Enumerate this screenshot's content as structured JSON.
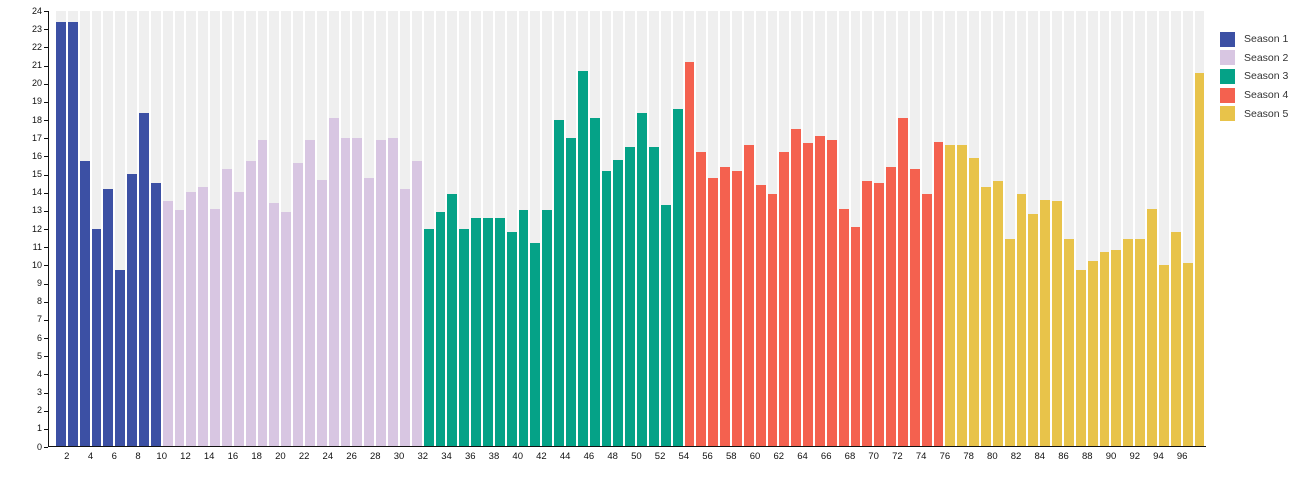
{
  "chart_data": {
    "type": "bar",
    "title": "",
    "xlabel": "",
    "ylabel": "",
    "x_unit": "episode number",
    "ylim": [
      0,
      24
    ],
    "y_ticks": [
      0,
      1,
      2,
      3,
      4,
      5,
      6,
      7,
      8,
      9,
      10,
      11,
      12,
      13,
      14,
      15,
      16,
      17,
      18,
      19,
      20,
      21,
      22,
      23,
      24
    ],
    "x_tick_labels": [
      2,
      4,
      6,
      8,
      10,
      12,
      14,
      16,
      18,
      20,
      22,
      24,
      26,
      28,
      30,
      32,
      34,
      36,
      38,
      40,
      42,
      44,
      46,
      48,
      50,
      52,
      54,
      56,
      58,
      60,
      62,
      64,
      66,
      68,
      70,
      72,
      74,
      76,
      78,
      80,
      82,
      84,
      86,
      88,
      90,
      92,
      94,
      96
    ],
    "total_bars": 97,
    "grid": "off",
    "background_stripes": true,
    "background_stripe_color": "#efefef",
    "axis_color": "#111111",
    "legend_position": "top-right",
    "series": [
      {
        "name": "Season 1",
        "color": "#3c50a4",
        "start_episode": 1,
        "values": [
          23.4,
          23.4,
          15.7,
          12.0,
          14.2,
          9.7,
          15.0,
          18.4,
          14.5
        ]
      },
      {
        "name": "Season 2",
        "color": "#d8c6e2",
        "start_episode": 10,
        "values": [
          13.5,
          13.0,
          14.0,
          14.3,
          13.1,
          15.3,
          14.0,
          15.7,
          16.9,
          13.4,
          12.9,
          15.6,
          16.9,
          14.7,
          18.1,
          17.0,
          17.0,
          14.8,
          16.9,
          17.0,
          14.2,
          15.7
        ]
      },
      {
        "name": "Season 3",
        "color": "#05a287",
        "start_episode": 32,
        "values": [
          12.0,
          12.9,
          13.9,
          12.0,
          12.6,
          12.6,
          12.6,
          11.8,
          13.0,
          11.2,
          13.0,
          18.0,
          17.0,
          20.7,
          18.1,
          15.2,
          15.8,
          16.5,
          18.4,
          16.5,
          13.3,
          18.6
        ]
      },
      {
        "name": "Season 4",
        "color": "#f4614f",
        "start_episode": 54,
        "values": [
          21.2,
          16.2,
          14.8,
          15.4,
          15.2,
          16.6,
          14.4,
          13.9,
          16.2,
          17.5,
          16.7,
          17.1,
          16.9,
          13.1,
          12.1,
          14.6,
          14.5,
          15.4,
          18.1,
          15.3,
          13.9,
          16.8
        ]
      },
      {
        "name": "Season 5",
        "color": "#e8c34a",
        "start_episode": 76,
        "values": [
          16.6,
          16.6,
          15.9,
          14.3,
          14.6,
          11.4,
          13.9,
          12.8,
          13.6,
          13.5,
          11.4,
          9.7,
          10.2,
          10.7,
          10.8,
          11.4,
          11.4,
          13.1,
          10.0,
          11.8,
          10.1,
          20.6
        ]
      }
    ]
  },
  "legend": {
    "items": [
      {
        "label": "Season 1"
      },
      {
        "label": "Season 2"
      },
      {
        "label": "Season 3"
      },
      {
        "label": "Season 4"
      },
      {
        "label": "Season 5"
      }
    ]
  }
}
